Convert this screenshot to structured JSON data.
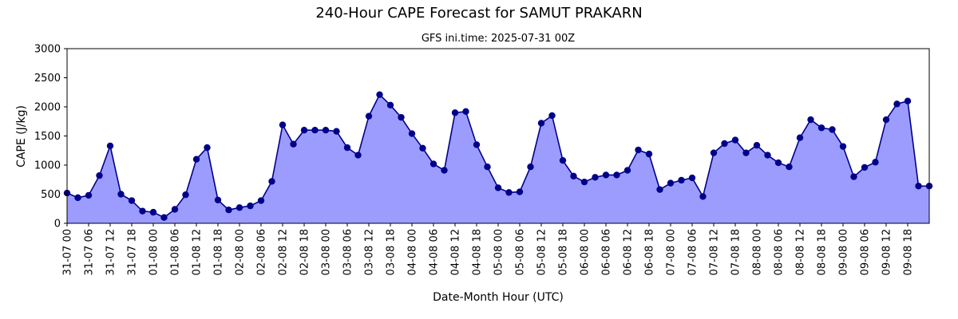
{
  "chart_data": {
    "type": "area",
    "title": "240-Hour CAPE Forecast for SAMUT PRAKARN",
    "subtitle": "GFS ini.time: 2025-07-31 00Z",
    "xlabel": "Date-Month Hour (UTC)",
    "ylabel": "CAPE (J/kg)",
    "ylim": [
      0,
      3000
    ],
    "yticks": [
      0,
      500,
      1000,
      1500,
      2000,
      2500,
      3000
    ],
    "x": [
      "31-07 00",
      "31-07 03",
      "31-07 06",
      "31-07 09",
      "31-07 12",
      "31-07 15",
      "31-07 18",
      "31-07 21",
      "01-08 00",
      "01-08 03",
      "01-08 06",
      "01-08 09",
      "01-08 12",
      "01-08 15",
      "01-08 18",
      "01-08 21",
      "02-08 00",
      "02-08 03",
      "02-08 06",
      "02-08 09",
      "02-08 12",
      "02-08 15",
      "02-08 18",
      "02-08 21",
      "03-08 00",
      "03-08 03",
      "03-08 06",
      "03-08 09",
      "03-08 12",
      "03-08 15",
      "03-08 18",
      "03-08 21",
      "04-08 00",
      "04-08 03",
      "04-08 06",
      "04-08 09",
      "04-08 12",
      "04-08 15",
      "04-08 18",
      "04-08 21",
      "05-08 00",
      "05-08 03",
      "05-08 06",
      "05-08 09",
      "05-08 12",
      "05-08 15",
      "05-08 18",
      "05-08 21",
      "06-08 00",
      "06-08 03",
      "06-08 06",
      "06-08 09",
      "06-08 12",
      "06-08 15",
      "06-08 18",
      "06-08 21",
      "07-08 00",
      "07-08 03",
      "07-08 06",
      "07-08 09",
      "07-08 12",
      "07-08 15",
      "07-08 18",
      "07-08 21",
      "08-08 00",
      "08-08 03",
      "08-08 06",
      "08-08 09",
      "08-08 12",
      "08-08 15",
      "08-08 18",
      "08-08 21",
      "09-08 00",
      "09-08 03",
      "09-08 06",
      "09-08 09",
      "09-08 12",
      "09-08 15",
      "09-08 18",
      "09-08 21",
      "10-08 00"
    ],
    "xtick_labels": [
      "31-07 00",
      "31-07 06",
      "31-07 12",
      "31-07 18",
      "01-08 00",
      "01-08 06",
      "01-08 12",
      "01-08 18",
      "02-08 00",
      "02-08 06",
      "02-08 12",
      "02-08 18",
      "03-08 00",
      "03-08 06",
      "03-08 12",
      "03-08 18",
      "04-08 00",
      "04-08 06",
      "04-08 12",
      "04-08 18",
      "05-08 00",
      "05-08 06",
      "05-08 12",
      "05-08 18",
      "06-08 00",
      "06-08 06",
      "06-08 12",
      "06-08 18",
      "07-08 00",
      "07-08 06",
      "07-08 12",
      "07-08 18",
      "08-08 00",
      "08-08 06",
      "08-08 12",
      "08-08 18",
      "09-08 00",
      "09-08 06",
      "09-08 12",
      "09-08 18"
    ],
    "values": [
      520,
      440,
      480,
      820,
      1330,
      500,
      390,
      210,
      190,
      100,
      240,
      490,
      1100,
      1300,
      400,
      230,
      270,
      300,
      390,
      720,
      1690,
      1360,
      1600,
      1600,
      1600,
      1580,
      1300,
      1170,
      1840,
      2210,
      2030,
      1820,
      1540,
      1290,
      1020,
      910,
      1900,
      1920,
      1350,
      970,
      610,
      530,
      540,
      970,
      1720,
      1850,
      1080,
      810,
      710,
      790,
      830,
      830,
      910,
      1260,
      1190,
      580,
      690,
      740,
      780,
      460,
      1210,
      1370,
      1430,
      1210,
      1340,
      1170,
      1040,
      970,
      1470,
      1780,
      1640,
      1610,
      1320,
      800,
      960,
      1050,
      1780,
      2050,
      2100,
      640,
      640
    ],
    "line_color": "#00008b",
    "fill_color": "#9c9cff",
    "marker_color": "#00008b",
    "grid": false
  }
}
